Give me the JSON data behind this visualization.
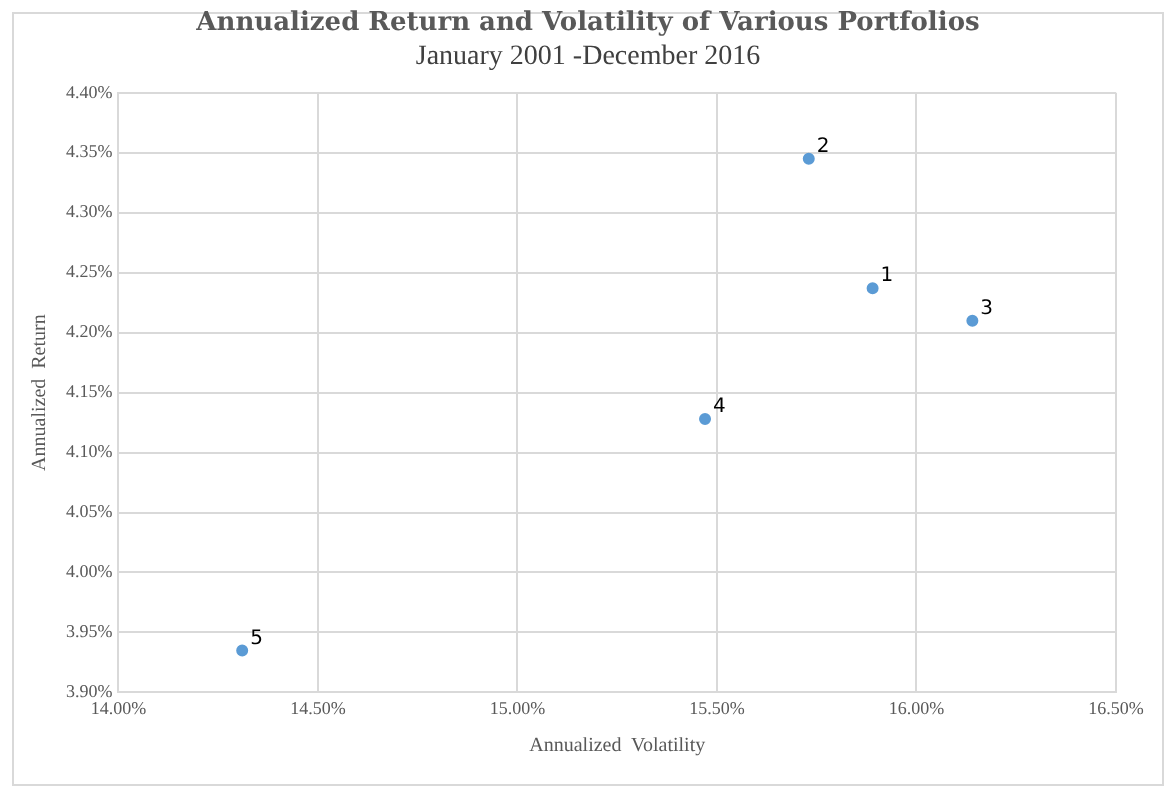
{
  "chart_data": {
    "type": "scatter",
    "title": "Annualized Return and Volatility of Various Portfolios",
    "subtitle": "January 2001 -December 2016",
    "xlabel": "Annualized  Volatility",
    "ylabel": "Annualized  Return",
    "series": [
      {
        "color": "#5b9bd5",
        "x": [
          15.89,
          15.73,
          16.14,
          15.47,
          14.31
        ],
        "values": [
          4.237,
          4.345,
          4.21,
          4.128,
          3.935
        ]
      }
    ],
    "xlim": [
      14,
      16.5
    ],
    "xticks": [
      {
        "value": 14,
        "label": "14.00%"
      },
      {
        "value": 14.5,
        "label": "14.50%"
      },
      {
        "value": 15,
        "label": "15.00%"
      },
      {
        "value": 15.5,
        "label": "15.50%"
      },
      {
        "value": 16,
        "label": "16.00%"
      },
      {
        "value": 16.5,
        "label": "16.50%"
      }
    ],
    "ylim": [
      3.9,
      4.4
    ],
    "yticks": [
      {
        "value": 3.9,
        "label": "3.90%"
      },
      {
        "value": 3.95,
        "label": "3.95%"
      },
      {
        "value": 4,
        "label": "4.00%"
      },
      {
        "value": 4.05,
        "label": "4.05%"
      },
      {
        "value": 4.1,
        "label": "4.10%"
      },
      {
        "value": 4.15,
        "label": "4.15%"
      },
      {
        "value": 4.2,
        "label": "4.20%"
      },
      {
        "value": 4.25,
        "label": "4.25%"
      },
      {
        "value": 4.3,
        "label": "4.30%"
      },
      {
        "value": 4.35,
        "label": "4.35%"
      },
      {
        "value": 4.4,
        "label": "4.40%"
      }
    ],
    "annotations": [
      {
        "text": "1",
        "x": 15.89,
        "y": 4.237
      },
      {
        "text": "2",
        "x": 15.73,
        "y": 4.345
      },
      {
        "text": "3",
        "x": 16.14,
        "y": 4.21
      },
      {
        "text": "4",
        "x": 15.47,
        "y": 4.128
      },
      {
        "text": "5",
        "x": 14.31,
        "y": 3.935
      }
    ],
    "grid": true,
    "marker": "circle"
  }
}
